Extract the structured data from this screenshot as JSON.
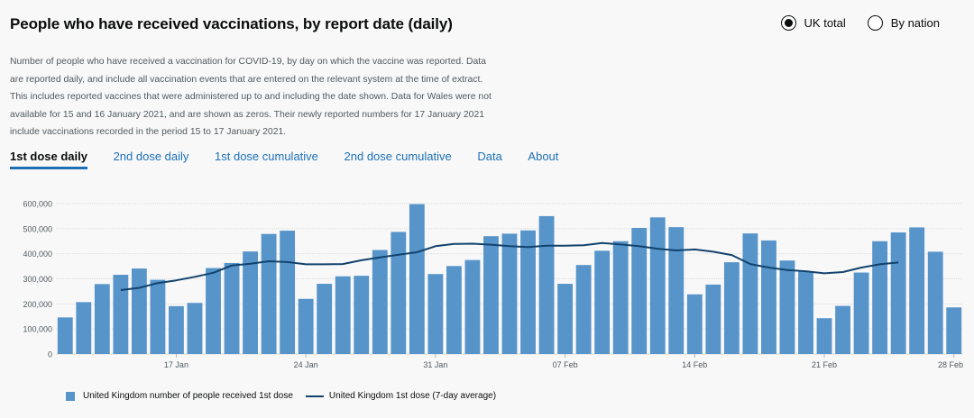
{
  "header": {
    "title": "People who have received vaccinations, by report date (daily)",
    "radio_options": [
      {
        "label": "UK total",
        "selected": true
      },
      {
        "label": "By nation",
        "selected": false
      }
    ]
  },
  "description": "Number of people who have received a vaccination for COVID-19, by day on which the vaccine was reported. Data are reported daily, and include all vaccination events that are entered on the relevant system at the time of extract. This includes reported vaccines that were administered up to and including the date shown. Data for Wales were not available for 15 and 16 January 2021, and are shown as zeros. Their newly reported numbers for 17 January 2021 include vaccinations recorded in the period 15 to 17 January 2021.",
  "tabs": [
    {
      "label": "1st dose daily",
      "active": true
    },
    {
      "label": "2nd dose daily",
      "active": false
    },
    {
      "label": "1st dose cumulative",
      "active": false
    },
    {
      "label": "2nd dose cumulative",
      "active": false
    },
    {
      "label": "Data",
      "active": false
    },
    {
      "label": "About",
      "active": false
    }
  ],
  "colors": {
    "bar": "#5694ca",
    "line": "#12436d",
    "active_tab": "#1d70b8"
  },
  "chart_data": {
    "type": "bar",
    "y_ticks": [
      "0",
      "100,000",
      "200,000",
      "300,000",
      "400,000",
      "500,000",
      "600,000"
    ],
    "ylim": [
      0,
      620000
    ],
    "x_tick_labels": [
      {
        "label": "17 Jan",
        "index": 6
      },
      {
        "label": "24 Jan",
        "index": 13
      },
      {
        "label": "31 Jan",
        "index": 20
      },
      {
        "label": "07 Feb",
        "index": 27
      },
      {
        "label": "14 Feb",
        "index": 34
      },
      {
        "label": "21 Feb",
        "index": 41
      },
      {
        "label": "28 Feb",
        "index": 48
      }
    ],
    "series": [
      {
        "name": "United Kingdom number of people received 1st dose",
        "type": "bar",
        "values": [
          146000,
          207000,
          279000,
          316000,
          341000,
          296000,
          191000,
          204000,
          343000,
          363000,
          409000,
          479000,
          492000,
          220000,
          280000,
          310000,
          312000,
          415000,
          487000,
          598000,
          319000,
          351000,
          375000,
          470000,
          480000,
          493000,
          550000,
          280000,
          355000,
          412000,
          450000,
          503000,
          545000,
          506000,
          238000,
          277000,
          366000,
          481000,
          453000,
          373000,
          330000,
          143000,
          192000,
          325000,
          450000,
          485000,
          505000,
          408000,
          186000
        ]
      },
      {
        "name": "United Kingdom 1st dose (7-day average)",
        "type": "line",
        "values": [
          null,
          null,
          null,
          255000,
          264000,
          283000,
          294000,
          308000,
          324000,
          353000,
          360000,
          370000,
          367000,
          358000,
          358000,
          359000,
          374000,
          385000,
          396000,
          406000,
          430000,
          439000,
          440000,
          436000,
          430000,
          427000,
          432000,
          432000,
          434000,
          443000,
          437000,
          430000,
          420000,
          413000,
          417000,
          408000,
          395000,
          359000,
          345000,
          335000,
          330000,
          322000,
          327000,
          345000,
          358000,
          365000,
          null,
          null,
          null
        ]
      }
    ]
  }
}
